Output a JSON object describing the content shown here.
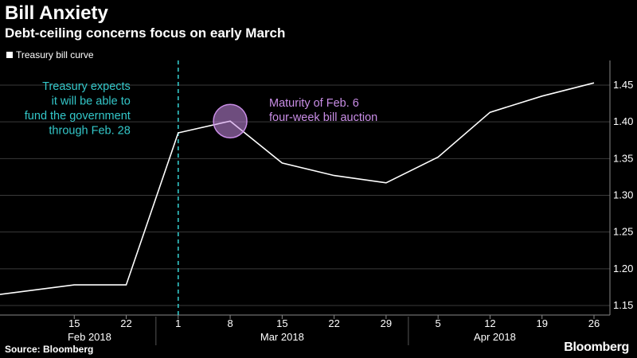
{
  "title": "Bill Anxiety",
  "subtitle": "Debt-ceiling concerns focus on early March",
  "legend_label": "Treasury bill curve",
  "source": "Source: Bloomberg",
  "brand": "Bloomberg",
  "colors": {
    "background": "#000000",
    "line": "#ffffff",
    "teal": "#33c7c9",
    "purple": "#c98de6",
    "grid": "#3a3a3a"
  },
  "chart_data": {
    "type": "line",
    "title": "Bill Anxiety",
    "subtitle": "Debt-ceiling concerns focus on early March",
    "xlabel": "",
    "ylabel": "",
    "ylim": [
      1.15,
      1.47
    ],
    "grid": true,
    "y_axis_side": "right",
    "legend_position": "top-left",
    "yticks": [
      "1.15",
      "1.20",
      "1.25",
      "1.30",
      "1.35",
      "1.40",
      "1.45"
    ],
    "xticks": [
      "15",
      "22",
      "1",
      "8",
      "15",
      "22",
      "29",
      "5",
      "12",
      "19",
      "26"
    ],
    "x_groups": [
      "Feb 2018",
      "Mar 2018",
      "Apr 2018"
    ],
    "series": [
      {
        "name": "Treasury bill curve",
        "x": [
          "2018-02-05",
          "2018-02-15",
          "2018-02-22",
          "2018-03-01",
          "2018-03-08",
          "2018-03-15",
          "2018-03-22",
          "2018-03-29",
          "2018-04-05",
          "2018-04-12",
          "2018-04-19",
          "2018-04-26"
        ],
        "y": [
          1.165,
          1.178,
          1.178,
          1.385,
          1.401,
          1.344,
          1.327,
          1.317,
          1.352,
          1.413,
          1.435,
          1.453
        ]
      }
    ],
    "annotations": [
      {
        "text": [
          "Treasury expects",
          "it will be able to",
          "fund the government",
          "through Feb. 28"
        ],
        "marker": "vertical-dashed-line",
        "x": "2018-03-01"
      },
      {
        "text": [
          "Maturity of Feb. 6",
          "four-week bill auction"
        ],
        "marker": "circle",
        "x": "2018-03-08",
        "y": 1.401
      }
    ]
  }
}
